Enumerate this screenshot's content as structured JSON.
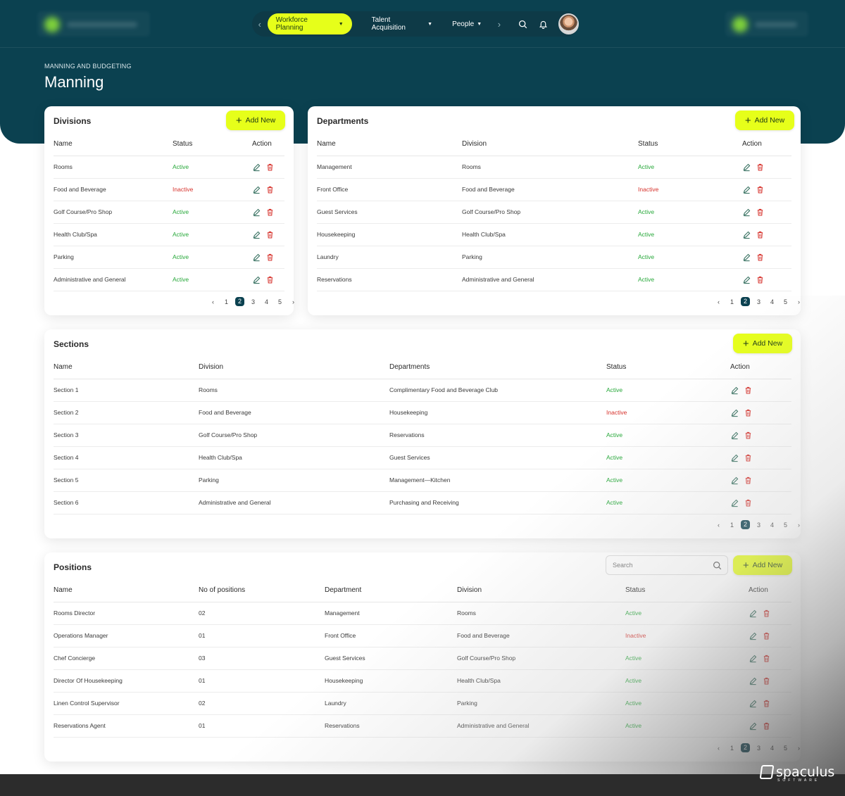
{
  "nav": {
    "items": [
      "Workforce Planning",
      "Talent Acquisition",
      "People"
    ],
    "active": "Workforce Planning"
  },
  "page": {
    "breadcrumb": "MANNING AND BUDGETING",
    "title": "Manning"
  },
  "add_label": "Add New",
  "divisions": {
    "title": "Divisions",
    "columns": [
      "Name",
      "Status",
      "Action"
    ],
    "rows": [
      {
        "name": "Rooms",
        "status": "Active"
      },
      {
        "name": "Food and Beverage",
        "status": "Inactive"
      },
      {
        "name": "Golf Course/Pro Shop",
        "status": "Active"
      },
      {
        "name": "Health Club/Spa",
        "status": "Active"
      },
      {
        "name": "Parking",
        "status": "Active"
      },
      {
        "name": "Administrative and General",
        "status": "Active"
      }
    ],
    "pages": [
      "1",
      "2",
      "3",
      "4",
      "5"
    ],
    "current_page": "2"
  },
  "departments": {
    "title": "Departments",
    "columns": [
      "Name",
      "Division",
      "Status",
      "Action"
    ],
    "rows": [
      {
        "name": "Management",
        "division": "Rooms",
        "status": "Active"
      },
      {
        "name": "Front Office",
        "division": "Food and Beverage",
        "status": "Inactive"
      },
      {
        "name": "Guest Services",
        "division": "Golf Course/Pro Shop",
        "status": "Active"
      },
      {
        "name": "Housekeeping",
        "division": "Health Club/Spa",
        "status": "Active"
      },
      {
        "name": "Laundry",
        "division": "Parking",
        "status": "Active"
      },
      {
        "name": "Reservations",
        "division": "Administrative and General",
        "status": "Active"
      }
    ],
    "pages": [
      "1",
      "2",
      "3",
      "4",
      "5"
    ],
    "current_page": "2"
  },
  "sections": {
    "title": "Sections",
    "columns": [
      "Name",
      "Division",
      "Departments",
      "Status",
      "Action"
    ],
    "rows": [
      {
        "name": "Section 1",
        "division": "Rooms",
        "department": "Complimentary Food and Beverage Club",
        "status": "Active"
      },
      {
        "name": "Section 2",
        "division": "Food and Beverage",
        "department": "Housekeeping",
        "status": "Inactive"
      },
      {
        "name": "Section 3",
        "division": "Golf Course/Pro Shop",
        "department": "Reservations",
        "status": "Active"
      },
      {
        "name": "Section 4",
        "division": "Health Club/Spa",
        "department": "Guest Services",
        "status": "Active"
      },
      {
        "name": "Section 5",
        "division": "Parking",
        "department": "Management—Kitchen",
        "status": "Active"
      },
      {
        "name": "Section 6",
        "division": "Administrative and General",
        "department": "Purchasing and Receiving",
        "status": "Active"
      }
    ],
    "pages": [
      "1",
      "2",
      "3",
      "4",
      "5"
    ],
    "current_page": "2"
  },
  "positions": {
    "title": "Positions",
    "search_placeholder": "Search",
    "columns": [
      "Name",
      "No of positions",
      "Department",
      "Division",
      "Status",
      "Action"
    ],
    "rows": [
      {
        "name": "Rooms Director",
        "count": "02",
        "department": "Management",
        "division": "Rooms",
        "status": "Active"
      },
      {
        "name": "Operations Manager",
        "count": "01",
        "department": "Front Office",
        "division": "Food and Beverage",
        "status": "Inactive"
      },
      {
        "name": "Chef Concierge",
        "count": "03",
        "department": "Guest Services",
        "division": "Golf Course/Pro Shop",
        "status": "Active"
      },
      {
        "name": "Director Of Housekeeping",
        "count": "01",
        "department": "Housekeeping",
        "division": "Health Club/Spa",
        "status": "Active"
      },
      {
        "name": "Linen Control Supervisor",
        "count": "02",
        "department": "Laundry",
        "division": "Parking",
        "status": "Active"
      },
      {
        "name": "Reservations Agent",
        "count": "01",
        "department": "Reservations",
        "division": "Administrative and General",
        "status": "Active"
      }
    ],
    "pages": [
      "1",
      "2",
      "3",
      "4",
      "5"
    ],
    "current_page": "2"
  },
  "brand": {
    "name": "spaculus",
    "tagline": "SOFTWARE"
  },
  "colors": {
    "header_bg": "#0b4150",
    "accent": "#e6ff1a",
    "active": "#27a83a",
    "inactive": "#d6322c"
  }
}
